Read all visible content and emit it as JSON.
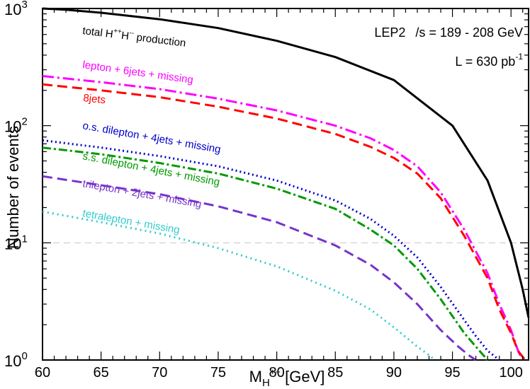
{
  "chart_data": {
    "type": "line",
    "x_axis": {
      "label_main": "M",
      "label_sub": "H",
      "label_sup": "++",
      "label_unit": " [GeV]",
      "range": [
        60,
        101.5
      ],
      "ticks": [
        60,
        65,
        70,
        75,
        80,
        85,
        90,
        95,
        100
      ],
      "tick_labels": [
        "60",
        "65",
        "70",
        "75",
        "80",
        "85",
        "90",
        "95",
        "100"
      ]
    },
    "y_axis": {
      "label": "Number of events",
      "scale": "log",
      "range": [
        1,
        1000
      ],
      "ticks": [
        1,
        10,
        100,
        1000
      ],
      "tick_labels": [
        {
          "base": "10",
          "exp": "0"
        },
        {
          "base": "10",
          "exp": "1"
        },
        {
          "base": "10",
          "exp": "2"
        },
        {
          "base": "10",
          "exp": "3"
        }
      ]
    },
    "reference_line_y": 10,
    "annotations": {
      "energy_prefix": "LEP2",
      "energy_text": "/s = 189 - 208 GeV",
      "lumi_main": "L = 630 pb",
      "lumi_sup": "-1"
    },
    "series": [
      {
        "label_main": "total H",
        "label_sup1": "++",
        "label_mid": "H",
        "label_sup2": "--",
        "label_tail": " production",
        "color": "#000000",
        "dash": "",
        "x": [
          60,
          62,
          65,
          70,
          75,
          80,
          85,
          90,
          95,
          98,
          100,
          101,
          101.5
        ],
        "y": [
          1000,
          975,
          920,
          810,
          680,
          530,
          385,
          245,
          100,
          34,
          10,
          4,
          2.3
        ]
      },
      {
        "label": "lepton + 6jets + missing",
        "color": "#ff00ff",
        "dash": "16,5,3,5",
        "x": [
          60,
          65,
          70,
          75,
          80,
          85,
          88,
          90,
          92,
          94,
          96,
          98,
          99,
          100,
          100.6,
          101
        ],
        "y": [
          265,
          235,
          205,
          170,
          135,
          100,
          78,
          62,
          45,
          27,
          13,
          5.5,
          3,
          1.8,
          1.2,
          1
        ]
      },
      {
        "label": "8jets",
        "color": "#ff0000",
        "dash": "14,7",
        "x": [
          60,
          65,
          70,
          75,
          80,
          85,
          88,
          90,
          92,
          94,
          96,
          98,
          99,
          100,
          100.6,
          101.2
        ],
        "y": [
          225,
          200,
          175,
          145,
          115,
          85,
          66,
          53,
          39,
          24,
          11.5,
          5,
          2.7,
          1.7,
          1.2,
          1
        ]
      },
      {
        "label": "o.s. dilepton + 4jets + missing",
        "color": "#0000cc",
        "dash": "2,4",
        "x": [
          60,
          65,
          70,
          75,
          80,
          85,
          88,
          90,
          92,
          94,
          96,
          97,
          98,
          99
        ],
        "y": [
          75,
          65,
          55,
          45,
          34,
          23,
          16,
          11.5,
          7.5,
          4.2,
          2.2,
          1.6,
          1.2,
          1
        ]
      },
      {
        "label": "s.s. dilepton + 4jets + missing",
        "color": "#009900",
        "dash": "12,4,3,4",
        "x": [
          60,
          65,
          70,
          75,
          80,
          85,
          88,
          90,
          92,
          94,
          96,
          97,
          98
        ],
        "y": [
          65,
          57,
          48,
          39,
          29,
          19.5,
          13,
          9.5,
          6,
          3.3,
          1.7,
          1.3,
          1
        ]
      },
      {
        "label": "trilepton + 2jets + missing",
        "color": "#7733cc",
        "dash": "14,7",
        "x": [
          60,
          65,
          70,
          75,
          80,
          85,
          88,
          90,
          92,
          94,
          95.5,
          96.5,
          97
        ],
        "y": [
          37,
          31,
          26,
          20.5,
          15,
          9.5,
          6.5,
          4.6,
          3,
          1.8,
          1.3,
          1.08,
          1
        ]
      },
      {
        "label": "tetralepton + missing",
        "color": "#33cccc",
        "dash": "2,5",
        "x": [
          60,
          65,
          70,
          75,
          80,
          85,
          88,
          90,
          92,
          93,
          93.5
        ],
        "y": [
          18.5,
          15,
          12,
          9,
          6.3,
          3.9,
          2.7,
          1.9,
          1.3,
          1.1,
          1
        ]
      }
    ]
  }
}
